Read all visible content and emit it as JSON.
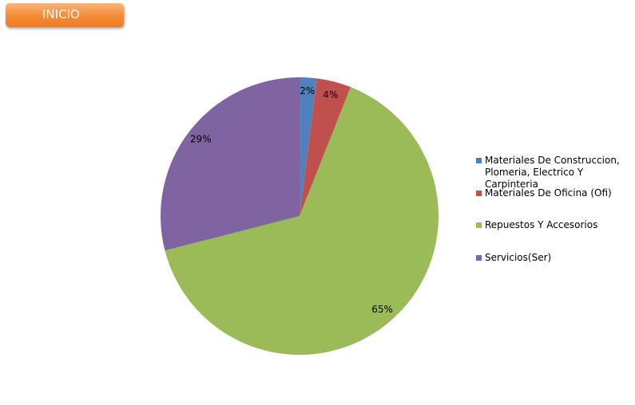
{
  "button": "INICIO",
  "chart_data": {
    "type": "pie",
    "categories": [
      "Materiales De Construccion, Plomeria, Electrico Y Carpinteria",
      "Materiales De Oficina (Ofi)",
      "Repuestos Y Accesorios",
      "Servicios(Ser)"
    ],
    "values": [
      2,
      4,
      65,
      29
    ],
    "value_labels": [
      "2%",
      "4%",
      "65%",
      "29%"
    ],
    "colors": [
      "#4f81bd",
      "#c0504d",
      "#9bbb59",
      "#8064a2"
    ],
    "legend": "right"
  }
}
